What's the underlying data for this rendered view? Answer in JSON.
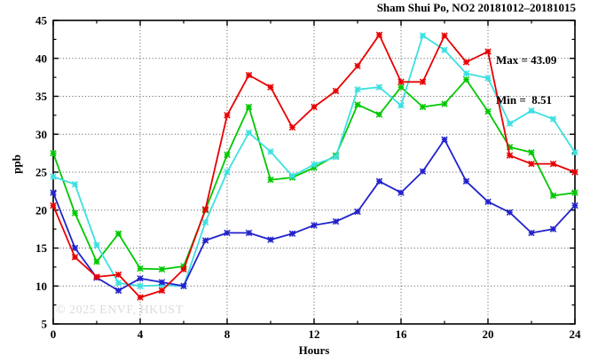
{
  "title": "Sham Shui Po, NO2 20181012–20181015",
  "annotations": {
    "max_label": "Max = 43.09",
    "min_label": "Min =  8.51"
  },
  "watermark": "© 2025 ENVF, HKUST",
  "chart_data": {
    "type": "line",
    "title": "Sham Shui Po, NO2 20181012–20181015",
    "xlabel": "Hours",
    "ylabel": "ppb",
    "xlim": [
      0,
      24
    ],
    "ylim": [
      5,
      45
    ],
    "x_ticks": [
      0,
      4,
      8,
      12,
      16,
      20,
      24
    ],
    "y_ticks": [
      5,
      10,
      15,
      20,
      25,
      30,
      35,
      40,
      45
    ],
    "x_minor_step": 2,
    "y_minor_step": 2.5,
    "grid": true,
    "legend": "none",
    "marker": "star",
    "x": [
      0,
      1,
      2,
      3,
      4,
      5,
      6,
      7,
      8,
      9,
      10,
      11,
      12,
      13,
      14,
      15,
      16,
      17,
      18,
      19,
      20,
      21,
      22,
      23,
      24
    ],
    "series": [
      {
        "name": "green-line",
        "color": "#00c800",
        "values": [
          27.5,
          19.6,
          13.2,
          16.9,
          12.3,
          12.2,
          12.6,
          20.0,
          27.3,
          33.6,
          24.0,
          24.3,
          25.6,
          27.2,
          33.9,
          32.6,
          36.2,
          33.6,
          34.0,
          37.2,
          33.0,
          28.3,
          27.6,
          21.9,
          22.3
        ]
      },
      {
        "name": "cyan-line",
        "color": "#3ce0e0",
        "values": [
          24.4,
          23.4,
          15.4,
          10.4,
          10.0,
          10.1,
          10.0,
          18.4,
          25.0,
          30.2,
          27.7,
          24.5,
          26.0,
          27.0,
          35.9,
          36.2,
          33.8,
          43.0,
          41.1,
          38.0,
          37.4,
          31.4,
          33.1,
          32.0,
          27.6
        ]
      },
      {
        "name": "blue-line",
        "color": "#2222cc",
        "values": [
          22.3,
          15.0,
          11.1,
          9.4,
          11.0,
          10.5,
          10.0,
          16.0,
          17.0,
          17.0,
          16.1,
          16.9,
          18.0,
          18.5,
          19.8,
          23.8,
          22.3,
          25.1,
          29.3,
          23.8,
          21.1,
          19.7,
          17.0,
          17.5,
          20.6
        ]
      },
      {
        "name": "red-line",
        "color": "#e80000",
        "values": [
          20.6,
          13.8,
          11.2,
          11.5,
          8.5,
          9.4,
          12.2,
          20.1,
          32.5,
          37.8,
          36.2,
          30.9,
          33.6,
          35.7,
          39.0,
          43.1,
          36.9,
          36.9,
          43.0,
          39.5,
          40.9,
          27.2,
          26.1,
          26.1,
          25.0
        ]
      }
    ],
    "stats": {
      "max": 43.09,
      "min": 8.51
    }
  }
}
